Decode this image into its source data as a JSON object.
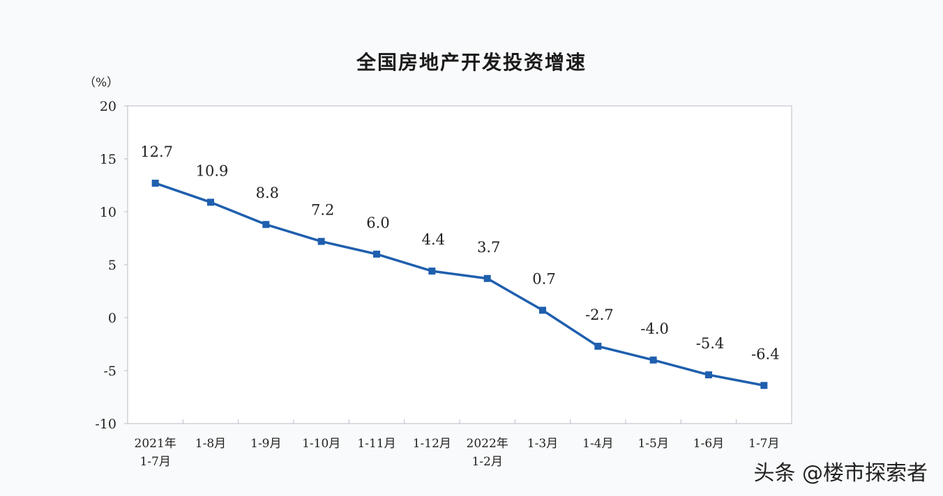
{
  "chart_data": {
    "type": "line",
    "title": "全国房地产开发投资增速",
    "ylabel": "（%）",
    "xlabel": "",
    "ylim": [
      -10,
      20
    ],
    "yticks": [
      20,
      15,
      10,
      5,
      0,
      -5,
      -10
    ],
    "categories": [
      [
        "2021年",
        "1-7月"
      ],
      [
        "1-8月"
      ],
      [
        "1-9月"
      ],
      [
        "1-10月"
      ],
      [
        "1-11月"
      ],
      [
        "1-12月"
      ],
      [
        "2022年",
        "1-2月"
      ],
      [
        "1-3月"
      ],
      [
        "1-4月"
      ],
      [
        "1-5月"
      ],
      [
        "1-6月"
      ],
      [
        "1-7月"
      ]
    ],
    "series": [
      {
        "values": [
          12.7,
          10.9,
          8.8,
          7.2,
          6.0,
          4.4,
          3.7,
          0.7,
          -2.7,
          -4.0,
          -5.4,
          -6.4
        ],
        "labels": [
          "12.7",
          "10.9",
          "8.8",
          "7.2",
          "6.0",
          "4.4",
          "3.7",
          "0.7",
          "-2.7",
          "-4.0",
          "-5.4",
          "-6.4"
        ],
        "color": "#1f5fae"
      }
    ],
    "grid": false,
    "legend": "none"
  },
  "watermark": "头条 @楼市探索者"
}
